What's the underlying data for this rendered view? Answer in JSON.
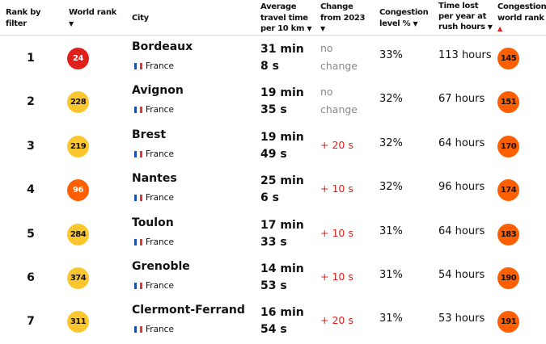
{
  "header": {
    "rank_by_filter": [
      "Rank by",
      "filter"
    ],
    "world_rank": "World rank",
    "city": "City",
    "avg_travel": [
      "Average",
      "travel time",
      "per 10 km"
    ],
    "change": [
      "Change",
      "from 2023"
    ],
    "congestion": [
      "Congestion",
      "level %"
    ],
    "time_lost": [
      "Time lost",
      "per year at",
      "rush hours"
    ],
    "congestion_world_rank": [
      "Congestion",
      "world rank"
    ],
    "sort_down": "▼",
    "sort_up": "▲"
  },
  "colors": {
    "red": "#e0201b",
    "yellow": "#fcc72e",
    "orange": "#ff5f00",
    "change_red": "#e0201b",
    "no_change_gray": "#888888"
  },
  "rows": [
    {
      "rank": "1",
      "world_rank": "24",
      "world_color": "red",
      "city": "Bordeaux",
      "country": "France",
      "avg": "31 min 8 s",
      "change": "no change",
      "change_type": "no",
      "congestion": "33%",
      "lost": "113 hours",
      "cwr": "145"
    },
    {
      "rank": "2",
      "world_rank": "228",
      "world_color": "yellow",
      "city": "Avignon",
      "country": "France",
      "avg": "19 min 35 s",
      "change": "no change",
      "change_type": "no",
      "congestion": "32%",
      "lost": "67 hours",
      "cwr": "151"
    },
    {
      "rank": "3",
      "world_rank": "219",
      "world_color": "yellow",
      "city": "Brest",
      "country": "France",
      "avg": "19 min 49 s",
      "change": "+ 20 s",
      "change_type": "plus",
      "congestion": "32%",
      "lost": "64 hours",
      "cwr": "170"
    },
    {
      "rank": "4",
      "world_rank": "96",
      "world_color": "orange",
      "city": "Nantes",
      "country": "France",
      "avg": "25 min 6 s",
      "change": "+ 10 s",
      "change_type": "plus",
      "congestion": "32%",
      "lost": "96 hours",
      "cwr": "174"
    },
    {
      "rank": "5",
      "world_rank": "284",
      "world_color": "yellow",
      "city": "Toulon",
      "country": "France",
      "avg": "17 min 33 s",
      "change": "+ 10 s",
      "change_type": "plus",
      "congestion": "31%",
      "lost": "64 hours",
      "cwr": "183"
    },
    {
      "rank": "6",
      "world_rank": "374",
      "world_color": "yellow",
      "city": "Grenoble",
      "country": "France",
      "avg": "14 min 53 s",
      "change": "+ 10 s",
      "change_type": "plus",
      "congestion": "31%",
      "lost": "54 hours",
      "cwr": "190"
    },
    {
      "rank": "7",
      "world_rank": "311",
      "world_color": "yellow",
      "city": "Clermont-Ferrand",
      "country": "France",
      "avg": "16 min 54 s",
      "change": "+ 20 s",
      "change_type": "plus",
      "congestion": "31%",
      "lost": "53 hours",
      "cwr": "191"
    }
  ]
}
